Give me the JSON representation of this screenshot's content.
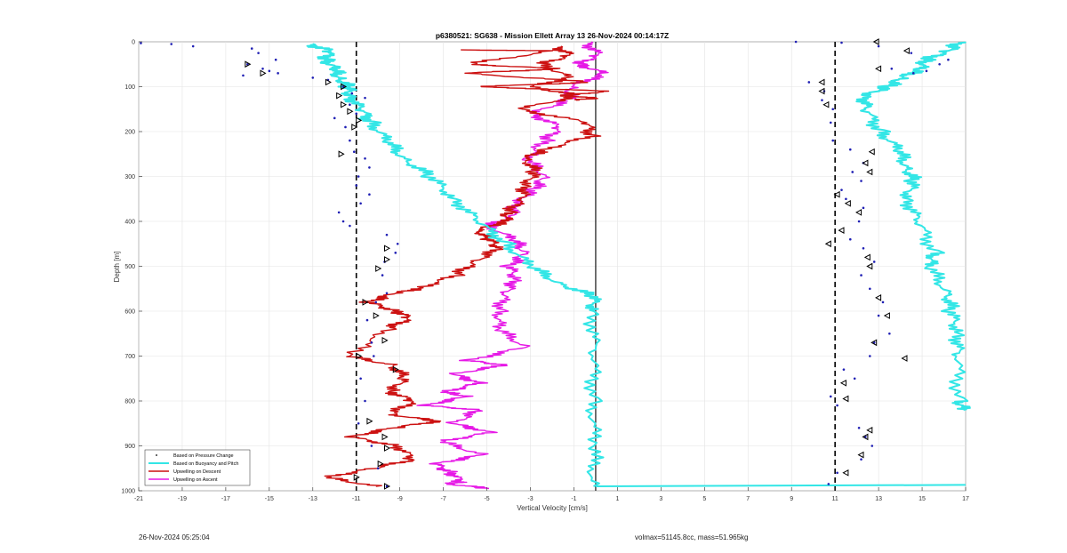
{
  "chart_data": {
    "type": "line",
    "title": "p6380521: SG638 - Mission Ellett Array 13 26-Nov-2024 00:14:17Z",
    "xlabel": "Vertical Velocity [cm/s]",
    "ylabel": "Depth [m]",
    "xlim": [
      -21,
      17
    ],
    "ylim": [
      0,
      1000
    ],
    "y_reversed": true,
    "grid": true,
    "x_ticks": [
      -21,
      -19,
      -17,
      -15,
      -13,
      -11,
      -9,
      -7,
      -5,
      -3,
      -1,
      1,
      3,
      5,
      7,
      9,
      11,
      13,
      15,
      17
    ],
    "x_tick_labels": [
      "-21",
      "-19",
      "-17",
      "-15",
      "-13",
      "-11",
      "-9",
      "-7",
      "-5",
      "-3",
      "-1",
      "1",
      "3",
      "5",
      "7",
      "9",
      "11",
      "13",
      "15",
      "17"
    ],
    "y_ticks": [
      0,
      100,
      200,
      300,
      400,
      500,
      600,
      700,
      800,
      900,
      1000
    ],
    "y_tick_labels": [
      "0",
      "100",
      "200",
      "300",
      "400",
      "500",
      "600",
      "700",
      "800",
      "900",
      "1000"
    ],
    "reference_lines": [
      {
        "x": -11,
        "style": "dashed",
        "color": "#000000"
      },
      {
        "x": 11,
        "style": "dashed",
        "color": "#000000"
      },
      {
        "x": 0,
        "style": "solid",
        "color": "#000000"
      }
    ],
    "legend_position": "bottom-left",
    "series": [
      {
        "name": "Based on Pressure Change",
        "kind": "scatter",
        "color": "#1f1fb4",
        "descent_x": [
          -20.9,
          -19.5,
          -18.5,
          -15.8,
          -15.5,
          -14.7,
          -16,
          -15.3,
          -15,
          -14.6,
          -16.2,
          -13,
          -12.3,
          -11.6,
          -11.2,
          -10.6,
          -11.3,
          -11,
          -12,
          -11.5,
          -11.3,
          -11.1,
          -10.6,
          -10.4,
          -10.9,
          -11,
          -10.4,
          -10.8,
          -11.8,
          -11.6,
          -11.3,
          -9.6,
          -9.1,
          -9.2,
          -9.7,
          -9.8,
          -9.6,
          -10.1,
          -10.5,
          -10.3,
          -10.2,
          -10.8,
          -10.6,
          -10.9,
          -10.3,
          -10,
          -9.6
        ],
        "descent_y": [
          3,
          5,
          10,
          15,
          25,
          40,
          50,
          60,
          65,
          70,
          75,
          80,
          85,
          100,
          115,
          125,
          140,
          160,
          170,
          190,
          220,
          245,
          260,
          280,
          300,
          320,
          340,
          360,
          380,
          400,
          410,
          430,
          450,
          470,
          490,
          520,
          560,
          580,
          620,
          670,
          700,
          750,
          800,
          850,
          900,
          950,
          990
        ],
        "ascent_x": [
          9.2,
          11.3,
          13,
          14.5,
          15.8,
          16.2,
          13.6,
          14.6,
          15.2,
          9.8,
          10.5,
          10.4,
          10.9,
          10.8,
          10.9,
          11.7,
          12.3,
          11.8,
          12.2,
          11.3,
          11.5,
          12.3,
          12.1,
          11.7,
          12.3,
          12.8,
          12.2,
          12.6,
          13.2,
          13,
          13.5,
          12.8,
          12.6,
          11.4,
          11.9,
          10.8,
          11.1,
          12.1,
          12.4,
          12.7,
          12.2,
          11.1,
          10.7
        ],
        "ascent_y": [
          0,
          2,
          10,
          25,
          50,
          40,
          60,
          70,
          65,
          90,
          110,
          130,
          150,
          180,
          220,
          240,
          270,
          290,
          310,
          330,
          350,
          370,
          400,
          440,
          460,
          490,
          520,
          550,
          580,
          610,
          650,
          670,
          700,
          730,
          750,
          790,
          810,
          860,
          880,
          900,
          930,
          960,
          985
        ]
      },
      {
        "name": "Based on Buoyancy and Pitch",
        "kind": "line",
        "color": "#33e6e6",
        "descent_x": [
          -13.2,
          -12.2,
          -12.4,
          -12,
          -11.8,
          -11.4,
          -11.3,
          -10.8,
          -10.3,
          -9.6,
          -8.8,
          -7.6,
          -6.5,
          -5.4,
          -4.1,
          -3,
          -1.6,
          -0.1,
          -0.1,
          -0.1,
          -0.1,
          -0.1,
          -0.1
        ],
        "descent_y": [
          5,
          20,
          40,
          60,
          80,
          100,
          120,
          150,
          180,
          220,
          260,
          300,
          350,
          400,
          450,
          500,
          540,
          566,
          600,
          700,
          800,
          900,
          990
        ],
        "ascent_x": [
          16.8,
          16.2,
          15.2,
          14.9,
          14.1,
          13.4,
          12.4,
          12.4,
          13.1,
          13.9,
          14.3,
          14.6,
          14.3,
          14.8,
          15.6,
          15.3,
          16.2,
          16.3,
          16.7,
          16.6,
          16.7,
          16.9
        ],
        "ascent_y": [
          0,
          20,
          40,
          60,
          80,
          100,
          120,
          150,
          200,
          240,
          280,
          310,
          350,
          400,
          470,
          500,
          560,
          600,
          650,
          700,
          800,
          820
        ]
      },
      {
        "name": "Upwelling on Descent",
        "kind": "line",
        "color": "#cc1111",
        "descent_x": [
          -1.8,
          -1.2,
          -2.5,
          -1.2,
          -3,
          -0.8,
          -3.5,
          -0.4,
          -0.2,
          -2.4,
          -3.2,
          -2.8,
          -3.2,
          -3.4,
          -4,
          -4.2,
          -5.4,
          -4.9,
          -4.4,
          -5.6,
          -6.4,
          -8.2,
          -9.2,
          -10.5,
          -9.1,
          -8.6,
          -9.5,
          -11.4,
          -9.3,
          -8.8,
          -9.4,
          -8.4,
          -9.4,
          -7.3,
          -9.3,
          -11.3,
          -9.1,
          -8.4,
          -10.2,
          -12.4,
          -10.1
        ],
        "descent_y": [
          10,
          30,
          50,
          80,
          100,
          120,
          150,
          180,
          210,
          240,
          260,
          290,
          320,
          350,
          380,
          400,
          420,
          440,
          460,
          490,
          520,
          550,
          560,
          580,
          600,
          615,
          640,
          700,
          720,
          750,
          780,
          800,
          830,
          845,
          860,
          880,
          900,
          930,
          950,
          970,
          990
        ],
        "ascent_x": [
          -6.4,
          -2,
          -5.9,
          -1.6,
          -6,
          -0.1,
          -5.4,
          0.6,
          -1.6,
          -0.1,
          -0.9
        ],
        "ascent_y": [
          18,
          20,
          50,
          60,
          70,
          90,
          100,
          110,
          120,
          125,
          130
        ]
      },
      {
        "name": "Upwelling on Ascent",
        "kind": "line",
        "color": "#e619e6",
        "descent_x": [
          -0.4,
          0.1,
          -0.8,
          0.4,
          -1.1,
          -1.3,
          -2.9,
          -1.7,
          -2.3,
          -3.2,
          -2.3,
          -2.9,
          -3.6,
          -3.9,
          -4.9,
          -3.8,
          -3.2,
          -4,
          -3.6,
          -4.2,
          -4.4,
          -4.5,
          -3.2,
          -5.9,
          -4.1,
          -6.6,
          -5.3,
          -7,
          -5.9,
          -7.9,
          -5.3,
          -6.6,
          -4.8,
          -7.1,
          -5.2,
          -7.4,
          -6.6,
          -6.2,
          -6.7,
          -4.9
        ],
        "descent_y": [
          0,
          30,
          50,
          70,
          100,
          130,
          160,
          190,
          220,
          260,
          300,
          330,
          360,
          390,
          410,
          440,
          470,
          500,
          530,
          560,
          600,
          640,
          680,
          710,
          720,
          740,
          760,
          780,
          790,
          810,
          820,
          850,
          870,
          890,
          920,
          940,
          960,
          980,
          985,
          995
        ],
        "ascent_x": [],
        "ascent_y": []
      }
    ],
    "descent_triangles_x": [
      -16,
      -15.3,
      -12.3,
      -11.6,
      -11.8,
      -11.6,
      -11.3,
      -10.9,
      -11.1,
      -11.7,
      -9.6,
      -9.6,
      -10,
      -10.6,
      -10.1,
      -9.7,
      -10.9,
      -9.2,
      -10.4,
      -9.7,
      -9.6,
      -9.9,
      -11,
      -9.6
    ],
    "descent_triangles_y": [
      50,
      70,
      90,
      100,
      120,
      140,
      155,
      175,
      190,
      250,
      460,
      485,
      505,
      580,
      610,
      665,
      700,
      730,
      845,
      880,
      905,
      940,
      970,
      990
    ],
    "ascent_triangles_x": [
      12.9,
      14.3,
      13,
      10.4,
      10.4,
      10.6,
      12.7,
      12.4,
      12.6,
      11.1,
      11.6,
      12.1,
      11.3,
      10.7,
      12.5,
      12.6,
      13,
      13.4,
      12.8,
      14.2,
      11.4,
      11.5,
      12.6,
      12.4,
      12.2,
      11.5
    ],
    "ascent_triangles_y": [
      0,
      20,
      60,
      90,
      110,
      140,
      245,
      270,
      290,
      340,
      360,
      380,
      420,
      450,
      480,
      500,
      570,
      610,
      670,
      705,
      760,
      795,
      865,
      880,
      920,
      960
    ]
  },
  "footer": {
    "timestamp": "26-Nov-2024 05:25:04",
    "volmax": "volmax=51145.8cc, mass=51.965kg"
  }
}
